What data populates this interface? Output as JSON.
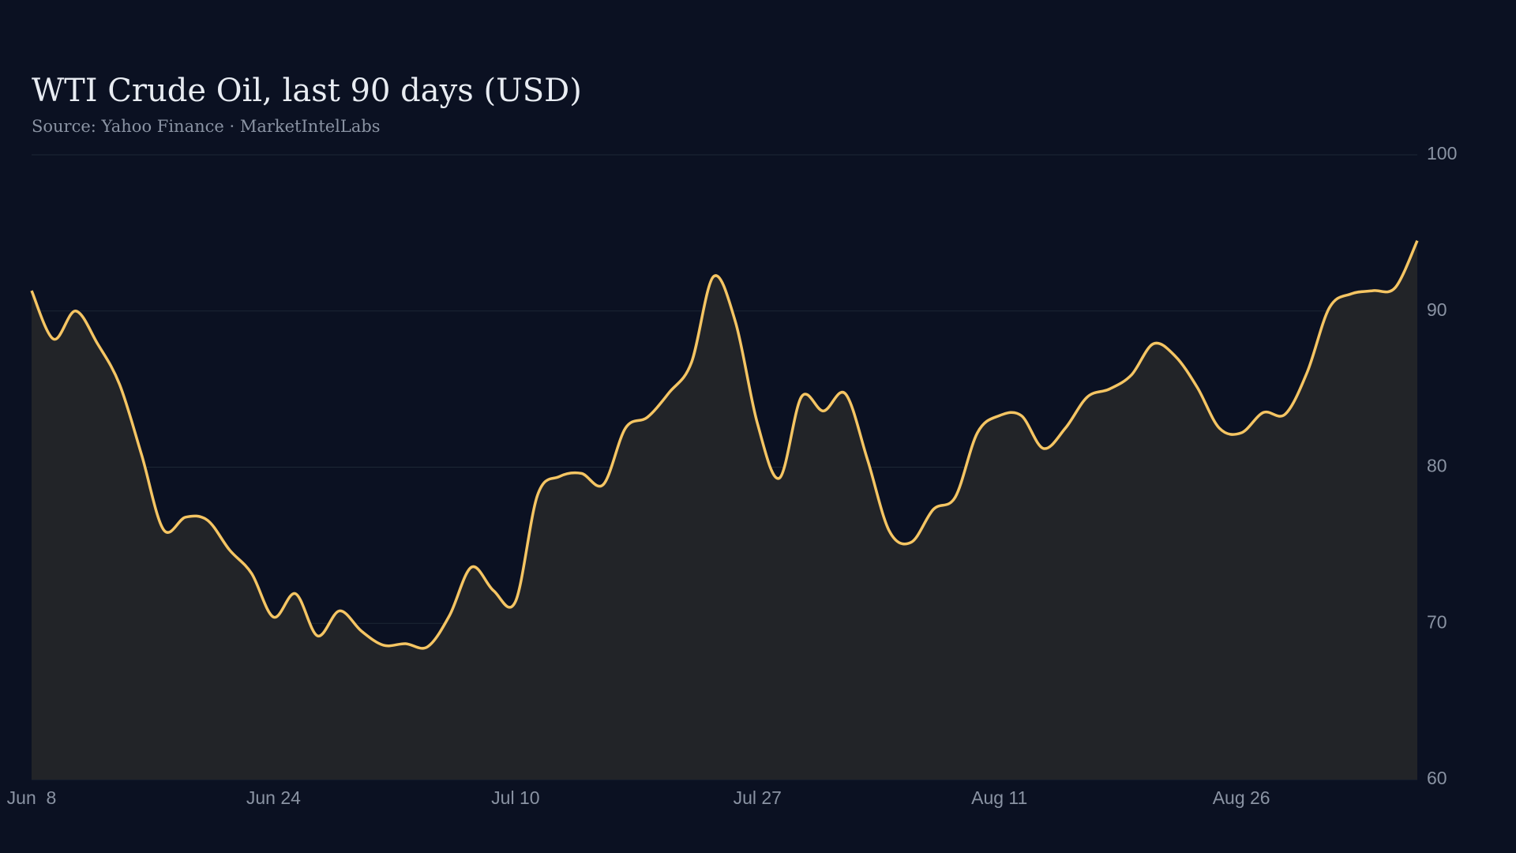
{
  "chart_data": {
    "type": "line",
    "title": "WTI Crude Oil, last 90 days (USD)",
    "subtitle": "Source: Yahoo Finance · MarketIntelLabs",
    "categories": [
      "Jun  8",
      null,
      null,
      null,
      null,
      null,
      null,
      null,
      null,
      null,
      null,
      "Jun 24",
      null,
      null,
      null,
      null,
      null,
      null,
      null,
      null,
      null,
      null,
      "Jul 10",
      null,
      null,
      null,
      null,
      null,
      null,
      null,
      null,
      null,
      null,
      "Jul 27",
      null,
      null,
      null,
      null,
      null,
      null,
      null,
      null,
      null,
      null,
      "Aug 11",
      null,
      null,
      null,
      null,
      null,
      null,
      null,
      null,
      null,
      null,
      "Aug 26",
      null,
      null,
      null,
      null,
      null,
      null,
      null,
      null
    ],
    "series": [
      {
        "name": "WTI",
        "color": "#f5c563",
        "values": [
          91.3,
          88.2,
          90.0,
          87.9,
          85.3,
          80.8,
          76.0,
          76.8,
          76.6,
          74.7,
          73.2,
          70.4,
          71.9,
          69.2,
          70.8,
          69.5,
          68.6,
          68.7,
          68.5,
          70.5,
          73.6,
          72.1,
          71.4,
          78.2,
          79.4,
          79.6,
          78.9,
          82.5,
          83.2,
          84.8,
          86.7,
          92.2,
          89.3,
          82.8,
          79.3,
          84.5,
          83.6,
          84.7,
          80.5,
          75.9,
          75.2,
          77.3,
          78.1,
          82.2,
          83.3,
          83.3,
          81.2,
          82.5,
          84.5,
          85.0,
          85.9,
          87.9,
          87.1,
          85.1,
          82.5,
          82.2,
          83.5,
          83.4,
          86.1,
          90.2,
          91.1,
          91.3,
          91.5,
          94.5
        ]
      }
    ],
    "ylim": [
      60,
      100
    ],
    "yticks": [
      60,
      70,
      80,
      90,
      100
    ],
    "grid": true,
    "area": true
  }
}
